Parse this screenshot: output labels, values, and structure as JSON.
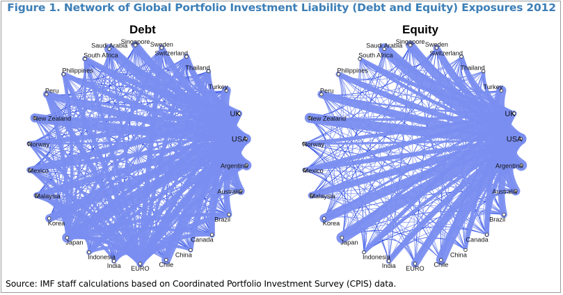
{
  "figure": {
    "title": "Figure 1. Network of Global Portfolio Investment Liability (Debt and Equity) Exposures 2012",
    "source": "Source: IMF staff calculations based on Coordinated Portfolio Investment Survey (CPIS) data."
  },
  "colors": {
    "title": "#3d7fb7",
    "edge_light": "#7a8ef0",
    "edge_dark": "#1f3fe0",
    "node": "#ffffff"
  },
  "nodes": [
    "UK",
    "USA",
    "Argentina",
    "Australia",
    "Brazil",
    "Canada",
    "China",
    "Chile",
    "EURO",
    "India",
    "Indonesia",
    "Japan",
    "Korea",
    "Malaysia",
    "Mexico",
    "Norway",
    "New Zealand",
    "Peru",
    "Philippines",
    "South Africa",
    "Saudi Arabia",
    "Singapore",
    "Sweden",
    "Switzerland",
    "Thailand",
    "Turkey"
  ],
  "panels": [
    {
      "title": "Debt",
      "hubs": [
        {
          "node": "USA",
          "weight": 0.9
        },
        {
          "node": "UK",
          "weight": 0.55
        },
        {
          "node": "EURO",
          "weight": 0.5
        },
        {
          "node": "Japan",
          "weight": 0.35
        }
      ],
      "mesh_density": 0.9
    },
    {
      "title": "Equity",
      "hubs": [
        {
          "node": "USA",
          "weight": 1.0
        },
        {
          "node": "UK",
          "weight": 0.4
        }
      ],
      "mesh_density": 0.55
    }
  ]
}
